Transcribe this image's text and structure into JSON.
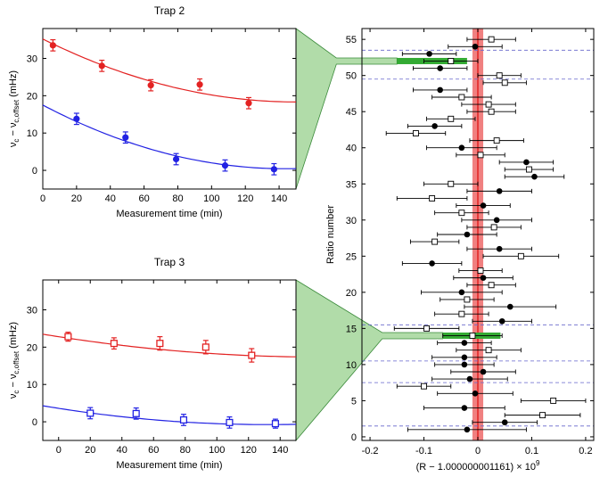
{
  "chart_data": [
    {
      "type": "scatter",
      "title": "Trap 2",
      "xlabel": "Measurement time (min)",
      "ylabel": "ν_c − ν_c,offset (mHz)",
      "ylabel_main": "ν",
      "ylabel_sub1": "c",
      "ylabel_minus": " − ν",
      "ylabel_sub2": "c,offset",
      "ylabel_unit": " (mHz)",
      "xlim": [
        0,
        150
      ],
      "ylim": [
        -5,
        38
      ],
      "xticks": [
        0,
        20,
        40,
        60,
        80,
        100,
        120,
        140
      ],
      "yticks": [
        0,
        10,
        20,
        30
      ],
      "marker": "filled-circle",
      "series": [
        {
          "color": "#e32222",
          "x": [
            6,
            35,
            50,
            64,
            93,
            122
          ],
          "y": [
            33.5,
            28.0,
            null,
            22.8,
            23.0,
            18.0
          ],
          "err": [
            1.5,
            1.5,
            null,
            1.5,
            1.5,
            1.5
          ],
          "fit": [
            35.2,
            -0.225,
            0.00075
          ]
        },
        {
          "color": "#2222e3",
          "x": [
            20,
            49,
            79,
            108,
            137
          ],
          "y": [
            13.8,
            8.8,
            3.0,
            1.3,
            0.3
          ],
          "err": [
            1.5,
            1.5,
            1.5,
            1.5,
            1.5
          ],
          "fit": [
            17.5,
            -0.238,
            0.00083
          ]
        }
      ]
    },
    {
      "type": "scatter",
      "title": "Trap 3",
      "xlabel": "Measurement time (min)",
      "ylabel": "ν_c − ν_c,offset (mHz)",
      "ylabel_main": "ν",
      "ylabel_sub1": "c",
      "ylabel_minus": " − ν",
      "ylabel_sub2": "c,offset",
      "ylabel_unit": " (mHz)",
      "xlim": [
        -10,
        150
      ],
      "ylim": [
        -5,
        38
      ],
      "xticks": [
        0,
        20,
        40,
        60,
        80,
        100,
        120,
        140
      ],
      "yticks": [
        0,
        10,
        20,
        30
      ],
      "marker": "open-square",
      "series": [
        {
          "color": "#e32222",
          "x": [
            6,
            35,
            64,
            93,
            122
          ],
          "y": [
            22.8,
            21.0,
            21.0,
            20.0,
            17.8
          ],
          "err": [
            1.2,
            1.5,
            1.8,
            1.8,
            1.8
          ],
          "fit": [
            22.8,
            -0.066,
            0.0002
          ]
        },
        {
          "color": "#2222e3",
          "x": [
            20,
            49,
            79,
            108,
            137
          ],
          "y": [
            2.3,
            2.2,
            0.5,
            -0.2,
            -0.5
          ],
          "err": [
            1.5,
            1.5,
            1.5,
            1.5,
            1.2
          ],
          "fit": [
            3.6,
            -0.066,
            0.00025
          ]
        }
      ]
    },
    {
      "type": "scatter",
      "xlabel": "(R − 1.000000001161) × 10⁹",
      "xlabel_text": "(R − 1.000000001161) × 10",
      "xlabel_exp": "9",
      "ylabel": "Ratio number",
      "xlim": [
        -0.215,
        0.215
      ],
      "ylim": [
        -0.5,
        56.5
      ],
      "xticks": [
        "-0.2",
        "-0.1",
        "0",
        "0.1",
        "0.2"
      ],
      "xtick_values": [
        -0.2,
        -0.1,
        0,
        0.1,
        0.2
      ],
      "yticks": [
        0,
        5,
        10,
        15,
        20,
        25,
        30,
        35,
        40,
        45,
        50,
        55
      ],
      "mean_band": {
        "center": 0.0,
        "width": 0.02,
        "color": "#f08080",
        "line_color": "#e32222"
      },
      "dashed_lines_y": [
        1.5,
        7.5,
        10.5,
        15.5,
        49.5,
        53.5
      ],
      "highlight_bars": [
        {
          "y": 52,
          "x_from": -0.15,
          "x_to": -0.02,
          "color": "#33aa33"
        },
        {
          "y": 14,
          "x_from": -0.065,
          "x_to": 0.042,
          "color": "#33aa33"
        }
      ],
      "points": [
        {
          "n": 1,
          "x": -0.02,
          "err": 0.11,
          "m": "filled"
        },
        {
          "n": 2,
          "x": 0.05,
          "err": 0.06,
          "m": "filled"
        },
        {
          "n": 3,
          "x": 0.12,
          "err": 0.07,
          "m": "open"
        },
        {
          "n": 4,
          "x": -0.025,
          "err": 0.075,
          "m": "filled"
        },
        {
          "n": 5,
          "x": 0.14,
          "err": 0.06,
          "m": "open"
        },
        {
          "n": 6,
          "x": -0.005,
          "err": 0.07,
          "m": "filled"
        },
        {
          "n": 7,
          "x": -0.1,
          "err": 0.05,
          "m": "open"
        },
        {
          "n": 8,
          "x": -0.015,
          "err": 0.07,
          "m": "filled"
        },
        {
          "n": 9,
          "x": 0.01,
          "err": 0.06,
          "m": "filled"
        },
        {
          "n": 10,
          "x": -0.025,
          "err": 0.055,
          "m": "filled"
        },
        {
          "n": 11,
          "x": -0.025,
          "err": 0.06,
          "m": "filled"
        },
        {
          "n": 12,
          "x": 0.02,
          "err": 0.06,
          "m": "open"
        },
        {
          "n": 13,
          "x": -0.025,
          "err": 0.05,
          "m": "filled"
        },
        {
          "n": 14,
          "x": -0.01,
          "err": 0.055,
          "m": "open"
        },
        {
          "n": 15,
          "x": -0.095,
          "err": 0.06,
          "m": "open"
        },
        {
          "n": 16,
          "x": 0.045,
          "err": 0.055,
          "m": "filled"
        },
        {
          "n": 17,
          "x": -0.03,
          "err": 0.05,
          "m": "open"
        },
        {
          "n": 18,
          "x": 0.06,
          "err": 0.085,
          "m": "filled"
        },
        {
          "n": 19,
          "x": -0.02,
          "err": 0.05,
          "m": "open"
        },
        {
          "n": 20,
          "x": -0.03,
          "err": 0.075,
          "m": "filled"
        },
        {
          "n": 21,
          "x": 0.025,
          "err": 0.045,
          "m": "open"
        },
        {
          "n": 22,
          "x": 0.01,
          "err": 0.055,
          "m": "filled"
        },
        {
          "n": 23,
          "x": 0.005,
          "err": 0.04,
          "m": "open"
        },
        {
          "n": 24,
          "x": -0.085,
          "err": 0.055,
          "m": "filled"
        },
        {
          "n": 25,
          "x": 0.08,
          "err": 0.07,
          "m": "open"
        },
        {
          "n": 26,
          "x": 0.04,
          "err": 0.06,
          "m": "filled"
        },
        {
          "n": 27,
          "x": -0.08,
          "err": 0.045,
          "m": "open"
        },
        {
          "n": 28,
          "x": -0.02,
          "err": 0.055,
          "m": "filled"
        },
        {
          "n": 29,
          "x": 0.03,
          "err": 0.05,
          "m": "open"
        },
        {
          "n": 30,
          "x": 0.035,
          "err": 0.065,
          "m": "filled"
        },
        {
          "n": 31,
          "x": -0.03,
          "err": 0.05,
          "m": "open"
        },
        {
          "n": 32,
          "x": 0.01,
          "err": 0.05,
          "m": "filled"
        },
        {
          "n": 33,
          "x": -0.085,
          "err": 0.065,
          "m": "open"
        },
        {
          "n": 34,
          "x": 0.04,
          "err": 0.06,
          "m": "filled"
        },
        {
          "n": 35,
          "x": -0.05,
          "err": 0.05,
          "m": "open"
        },
        {
          "n": 36,
          "x": 0.105,
          "err": 0.055,
          "m": "filled"
        },
        {
          "n": 37,
          "x": 0.095,
          "err": 0.045,
          "m": "open"
        },
        {
          "n": 38,
          "x": 0.09,
          "err": 0.05,
          "m": "filled"
        },
        {
          "n": 39,
          "x": 0.005,
          "err": 0.045,
          "m": "open"
        },
        {
          "n": 40,
          "x": -0.03,
          "err": 0.065,
          "m": "filled"
        },
        {
          "n": 41,
          "x": 0.035,
          "err": 0.05,
          "m": "open"
        },
        {
          "n": 42,
          "x": -0.115,
          "err": 0.055,
          "m": "open"
        },
        {
          "n": 43,
          "x": -0.08,
          "err": 0.05,
          "m": "filled"
        },
        {
          "n": 44,
          "x": -0.05,
          "err": 0.045,
          "m": "open"
        },
        {
          "n": 45,
          "x": 0.025,
          "err": 0.045,
          "m": "open"
        },
        {
          "n": 46,
          "x": 0.02,
          "err": 0.05,
          "m": "open"
        },
        {
          "n": 47,
          "x": -0.03,
          "err": 0.055,
          "m": "open"
        },
        {
          "n": 48,
          "x": -0.07,
          "err": 0.05,
          "m": "filled"
        },
        {
          "n": 49,
          "x": 0.05,
          "err": 0.04,
          "m": "open"
        },
        {
          "n": 50,
          "x": 0.04,
          "err": 0.04,
          "m": "open"
        },
        {
          "n": 51,
          "x": -0.07,
          "err": 0.05,
          "m": "filled"
        },
        {
          "n": 52,
          "x": -0.05,
          "err": 0.05,
          "m": "open"
        },
        {
          "n": 53,
          "x": -0.09,
          "err": 0.05,
          "m": "filled"
        },
        {
          "n": 54,
          "x": -0.005,
          "err": 0.05,
          "m": "filled"
        },
        {
          "n": 55,
          "x": 0.025,
          "err": 0.045,
          "m": "open"
        }
      ]
    }
  ]
}
